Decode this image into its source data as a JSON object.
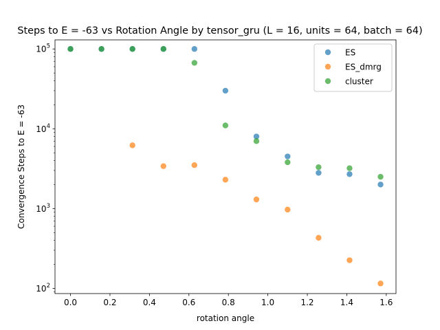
{
  "chart_data": {
    "type": "scatter",
    "title": "Steps to E = -63 vs Rotation Angle by tensor_gru (L = 16, units = 64, batch = 64)",
    "xlabel": "rotation angle",
    "ylabel": "Convergence Steps to E = -63",
    "x_scale": "linear",
    "y_scale": "log",
    "xlim": [
      -0.0785,
      1.6493
    ],
    "ylim": [
      86,
      130000
    ],
    "x_ticks": [
      0.0,
      0.2,
      0.4,
      0.6,
      0.8,
      1.0,
      1.2,
      1.4,
      1.6
    ],
    "x_tick_labels": [
      "0.0",
      "0.2",
      "0.4",
      "0.6",
      "0.8",
      "1.0",
      "1.2",
      "1.4",
      "1.6"
    ],
    "y_ticks": [
      100,
      1000,
      10000,
      100000
    ],
    "y_tick_labels": [
      {
        "base": "10",
        "exp": "2"
      },
      {
        "base": "10",
        "exp": "3"
      },
      {
        "base": "10",
        "exp": "4"
      },
      {
        "base": "10",
        "exp": "5"
      }
    ],
    "grid": false,
    "legend_position": "upper right",
    "series": [
      {
        "name": "ES",
        "color": "#1f77b4",
        "x": [
          0.0,
          0.157,
          0.314,
          0.471,
          0.628,
          0.785,
          0.942,
          1.1,
          1.257,
          1.414,
          1.571
        ],
        "y": [
          100000,
          100000,
          100000,
          100000,
          100000,
          30000,
          8000,
          4500,
          2800,
          2700,
          2000
        ]
      },
      {
        "name": "ES_dmrg",
        "color": "#ff7f0e",
        "x": [
          0.314,
          0.471,
          0.628,
          0.785,
          0.942,
          1.1,
          1.257,
          1.414,
          1.571
        ],
        "y": [
          6200,
          3400,
          3500,
          2300,
          1300,
          970,
          430,
          225,
          115
        ]
      },
      {
        "name": "cluster",
        "color": "#2ca02c",
        "x": [
          0.0,
          0.157,
          0.314,
          0.471,
          0.628,
          0.785,
          0.942,
          1.1,
          1.257,
          1.414,
          1.571
        ],
        "y": [
          100000,
          100000,
          100000,
          100000,
          67000,
          11000,
          7000,
          3800,
          3300,
          3200,
          2500
        ]
      }
    ]
  }
}
